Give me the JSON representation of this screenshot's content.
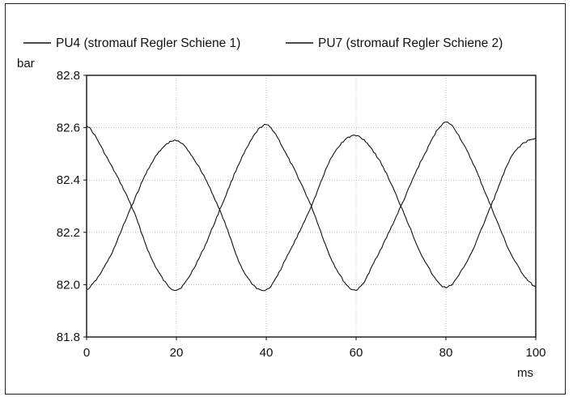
{
  "chart_data": {
    "type": "line",
    "title": "",
    "xlabel": "ms",
    "ylabel": "bar",
    "xlim": [
      0,
      100
    ],
    "ylim": [
      81.8,
      82.8
    ],
    "x_ticks": [
      0,
      20,
      40,
      60,
      80,
      100
    ],
    "x_tick_labels": [
      "0",
      "20",
      "40",
      "60",
      "80",
      "100"
    ],
    "y_ticks": [
      81.8,
      82.0,
      82.2,
      82.4,
      82.6,
      82.8
    ],
    "y_tick_labels": [
      "81.8",
      "82.0",
      "82.2",
      "82.4",
      "82.6",
      "82.8"
    ],
    "grid": true,
    "legend_position": "top",
    "series": [
      {
        "name": "PU4 (stromauf Regler Schiene 1)",
        "color": "#111111",
        "x": [
          0,
          5,
          10,
          15,
          20,
          25,
          30,
          35,
          40,
          45,
          50,
          55,
          60,
          65,
          70,
          75,
          80,
          85,
          90,
          95,
          100
        ],
        "y": [
          82.61,
          82.47,
          82.3,
          82.08,
          81.98,
          82.1,
          82.3,
          82.5,
          82.61,
          82.48,
          82.3,
          82.08,
          81.98,
          82.12,
          82.3,
          82.49,
          82.62,
          82.5,
          82.3,
          82.1,
          81.99
        ]
      },
      {
        "name": "PU7 (stromauf Regler Schiene 2)",
        "color": "#111111",
        "x": [
          0,
          5,
          10,
          15,
          20,
          25,
          30,
          35,
          40,
          45,
          50,
          55,
          60,
          65,
          70,
          75,
          80,
          85,
          90,
          95,
          100
        ],
        "y": [
          81.98,
          82.1,
          82.3,
          82.48,
          82.55,
          82.45,
          82.27,
          82.05,
          81.98,
          82.12,
          82.3,
          82.5,
          82.57,
          82.48,
          82.3,
          82.1,
          81.99,
          82.1,
          82.3,
          82.5,
          82.56
        ]
      }
    ]
  }
}
